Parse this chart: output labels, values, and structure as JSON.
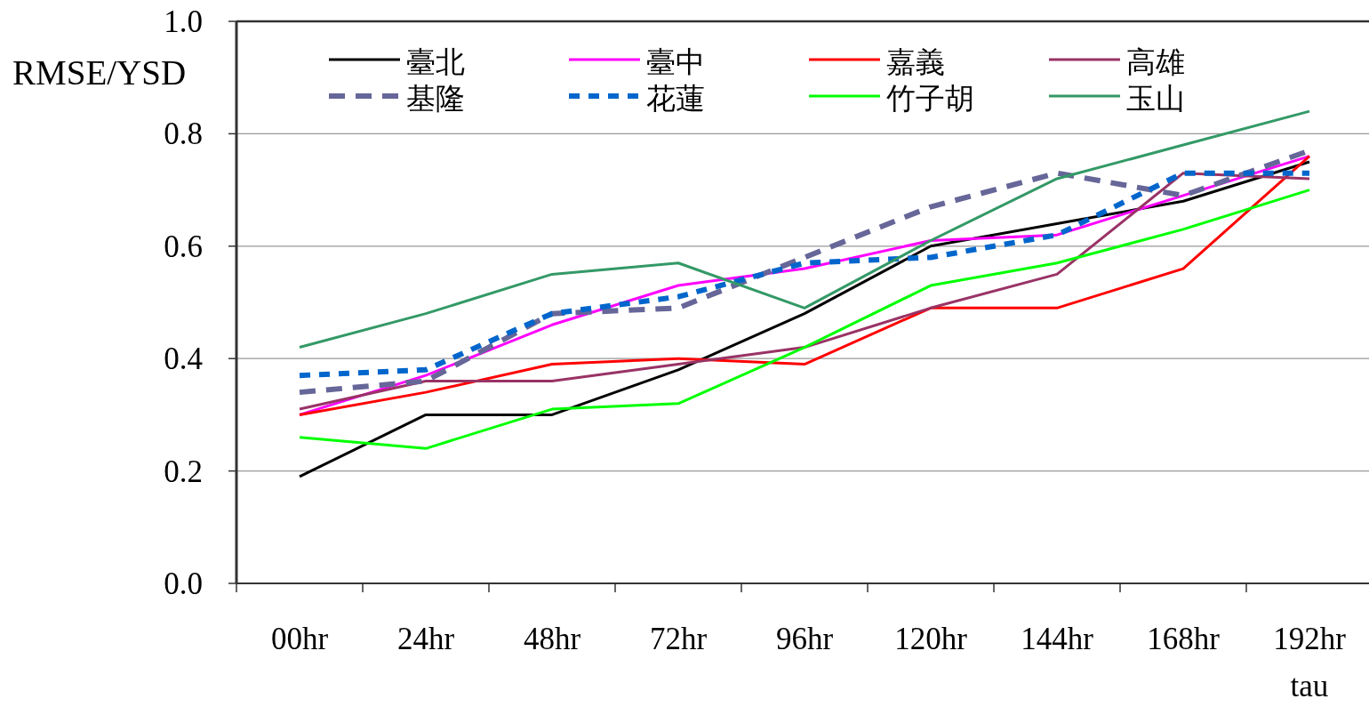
{
  "chart_data": {
    "type": "line",
    "ylabel": "RMSE/YSD",
    "xlabel": "tau",
    "categories": [
      "00hr",
      "24hr",
      "48hr",
      "72hr",
      "96hr",
      "120hr",
      "144hr",
      "168hr",
      "192hr"
    ],
    "ylim": [
      0,
      1
    ],
    "yticks": [
      {
        "value": 0,
        "label": "0.0"
      },
      0.2,
      0.4,
      0.6,
      0.8,
      {
        "value": 1,
        "label": "1.0"
      }
    ],
    "grid": "y",
    "legend": "top",
    "series": [
      {
        "name": "臺北",
        "color": "#000000",
        "line_style": "solid",
        "values": [
          0.19,
          0.3,
          0.3,
          0.38,
          0.48,
          0.6,
          0.64,
          0.68,
          0.75
        ]
      },
      {
        "name": "臺中",
        "color": "#ff00ff",
        "line_style": "solid",
        "values": [
          0.3,
          0.37,
          0.46,
          0.53,
          0.56,
          0.61,
          0.62,
          0.69,
          0.76
        ]
      },
      {
        "name": "嘉義",
        "color": "#ff0000",
        "line_style": "solid",
        "values": [
          0.3,
          0.34,
          0.39,
          0.4,
          0.39,
          0.49,
          0.49,
          0.56,
          0.76
        ]
      },
      {
        "name": "高雄",
        "color": "#993366",
        "line_style": "solid",
        "values": [
          0.31,
          0.36,
          0.36,
          0.39,
          0.42,
          0.49,
          0.55,
          0.73,
          0.72
        ]
      },
      {
        "name": "基隆",
        "color": "#666699",
        "line_style": "dashed",
        "values": [
          0.34,
          0.36,
          0.48,
          0.49,
          0.58,
          0.67,
          0.73,
          0.69,
          0.77
        ]
      },
      {
        "name": "花蓮",
        "color": "#0066cc",
        "line_style": "dotted",
        "values": [
          0.37,
          0.38,
          0.48,
          0.51,
          0.57,
          0.58,
          0.62,
          0.73,
          0.73
        ]
      },
      {
        "name": "竹子胡",
        "color": "#00ff00",
        "line_style": "solid",
        "values": [
          0.26,
          0.24,
          0.31,
          0.32,
          0.42,
          0.53,
          0.57,
          0.63,
          0.7
        ]
      },
      {
        "name": "玉山",
        "color": "#339966",
        "line_style": "solid",
        "values": [
          0.42,
          0.48,
          0.55,
          0.57,
          0.49,
          0.61,
          0.72,
          0.78,
          0.84
        ]
      }
    ]
  }
}
